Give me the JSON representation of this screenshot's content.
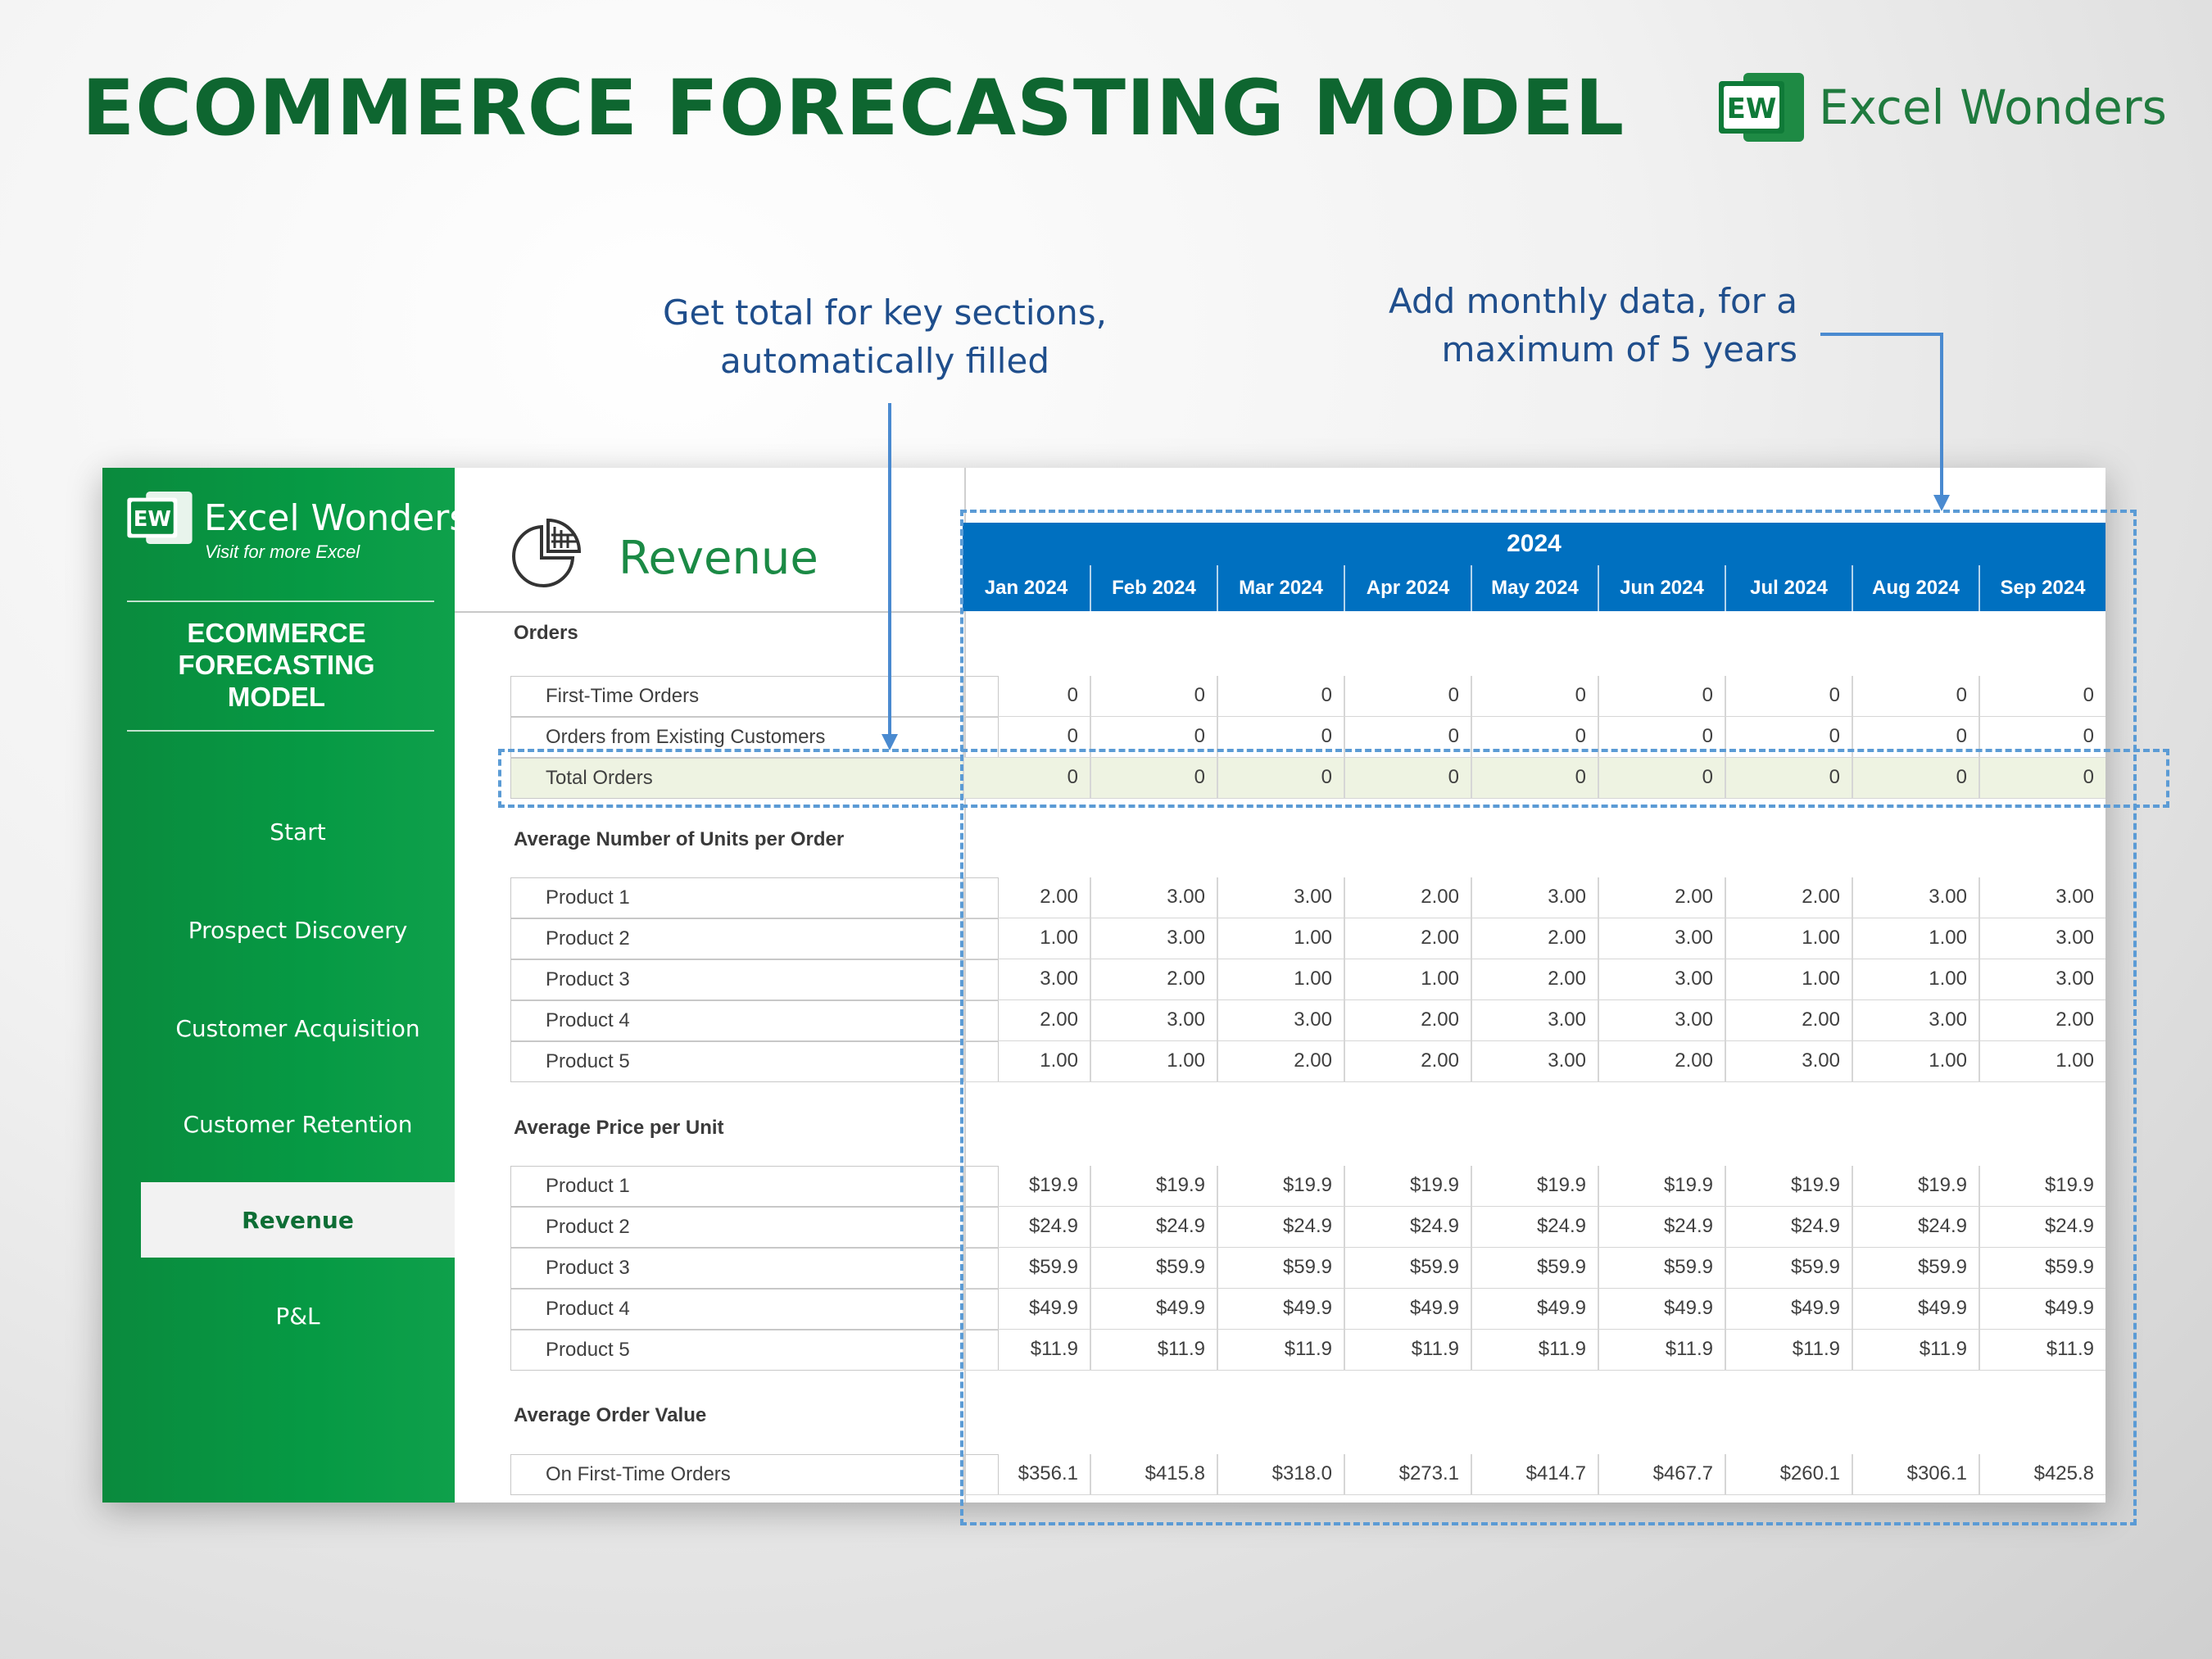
{
  "header": {
    "title": "ECOMMERCE FORECASTING MODEL",
    "brand": "Excel Wonders",
    "logo_text": "EW"
  },
  "annotations": {
    "totals_note": [
      "Get total for key sections,",
      "automatically filled"
    ],
    "monthly_note": [
      "Add monthly data, for a",
      "maximum of 5 years"
    ]
  },
  "sidebar": {
    "brand": "Excel Wonders",
    "logo_text": "EW",
    "tagline": "Visit for more Excel",
    "model_title": [
      "ECOMMERCE",
      "FORECASTING",
      "MODEL"
    ],
    "nav": [
      {
        "label": "Start",
        "active": false
      },
      {
        "label": "Prospect Discovery",
        "active": false
      },
      {
        "label": "Customer Acquisition",
        "active": false
      },
      {
        "label": "Customer Retention",
        "active": false
      },
      {
        "label": "Revenue",
        "active": true
      },
      {
        "label": "P&L",
        "active": false
      }
    ]
  },
  "sheet": {
    "title": "Revenue",
    "year": "2024",
    "months": [
      "Jan 2024",
      "Feb 2024",
      "Mar 2024",
      "Apr 2024",
      "May 2024",
      "Jun 2024",
      "Jul 2024",
      "Aug 2024",
      "Sep 2024"
    ],
    "sections": [
      {
        "title": "Orders",
        "rows": [
          {
            "label": "First-Time Orders",
            "values": [
              "0",
              "0",
              "0",
              "0",
              "0",
              "0",
              "0",
              "0",
              "0"
            ]
          },
          {
            "label": "Orders from Existing Customers",
            "values": [
              "0",
              "0",
              "0",
              "0",
              "0",
              "0",
              "0",
              "0",
              "0"
            ]
          },
          {
            "label": "Total Orders",
            "total": true,
            "values": [
              "0",
              "0",
              "0",
              "0",
              "0",
              "0",
              "0",
              "0",
              "0"
            ]
          }
        ]
      },
      {
        "title": "Average Number of Units per Order",
        "rows": [
          {
            "label": "Product 1",
            "values": [
              "2.00",
              "3.00",
              "3.00",
              "2.00",
              "3.00",
              "2.00",
              "2.00",
              "3.00",
              "3.00"
            ]
          },
          {
            "label": "Product 2",
            "values": [
              "1.00",
              "3.00",
              "1.00",
              "2.00",
              "2.00",
              "3.00",
              "1.00",
              "1.00",
              "3.00"
            ]
          },
          {
            "label": "Product 3",
            "values": [
              "3.00",
              "2.00",
              "1.00",
              "1.00",
              "2.00",
              "3.00",
              "1.00",
              "1.00",
              "3.00"
            ]
          },
          {
            "label": "Product 4",
            "values": [
              "2.00",
              "3.00",
              "3.00",
              "2.00",
              "3.00",
              "3.00",
              "2.00",
              "3.00",
              "2.00"
            ]
          },
          {
            "label": "Product 5",
            "values": [
              "1.00",
              "1.00",
              "2.00",
              "2.00",
              "3.00",
              "2.00",
              "3.00",
              "1.00",
              "1.00"
            ]
          }
        ]
      },
      {
        "title": "Average Price per Unit",
        "rows": [
          {
            "label": "Product 1",
            "values": [
              "$19.9",
              "$19.9",
              "$19.9",
              "$19.9",
              "$19.9",
              "$19.9",
              "$19.9",
              "$19.9",
              "$19.9"
            ]
          },
          {
            "label": "Product 2",
            "values": [
              "$24.9",
              "$24.9",
              "$24.9",
              "$24.9",
              "$24.9",
              "$24.9",
              "$24.9",
              "$24.9",
              "$24.9"
            ]
          },
          {
            "label": "Product 3",
            "values": [
              "$59.9",
              "$59.9",
              "$59.9",
              "$59.9",
              "$59.9",
              "$59.9",
              "$59.9",
              "$59.9",
              "$59.9"
            ]
          },
          {
            "label": "Product 4",
            "values": [
              "$49.9",
              "$49.9",
              "$49.9",
              "$49.9",
              "$49.9",
              "$49.9",
              "$49.9",
              "$49.9",
              "$49.9"
            ]
          },
          {
            "label": "Product 5",
            "values": [
              "$11.9",
              "$11.9",
              "$11.9",
              "$11.9",
              "$11.9",
              "$11.9",
              "$11.9",
              "$11.9",
              "$11.9"
            ]
          }
        ]
      },
      {
        "title": "Average Order Value",
        "rows": [
          {
            "label": "On First-Time Orders",
            "values": [
              "$356.1",
              "$415.8",
              "$318.0",
              "$273.1",
              "$414.7",
              "$467.7",
              "$260.1",
              "$306.1",
              "$425.8"
            ]
          }
        ]
      }
    ]
  },
  "colors": {
    "green_dark": "#0e6630",
    "green_sidebar": "#069a44",
    "blue_header": "#0070c0",
    "total_row_bg": "#eef3e2",
    "annotation_blue": "#1f4e8c",
    "dash_blue": "#5b9bd5"
  }
}
